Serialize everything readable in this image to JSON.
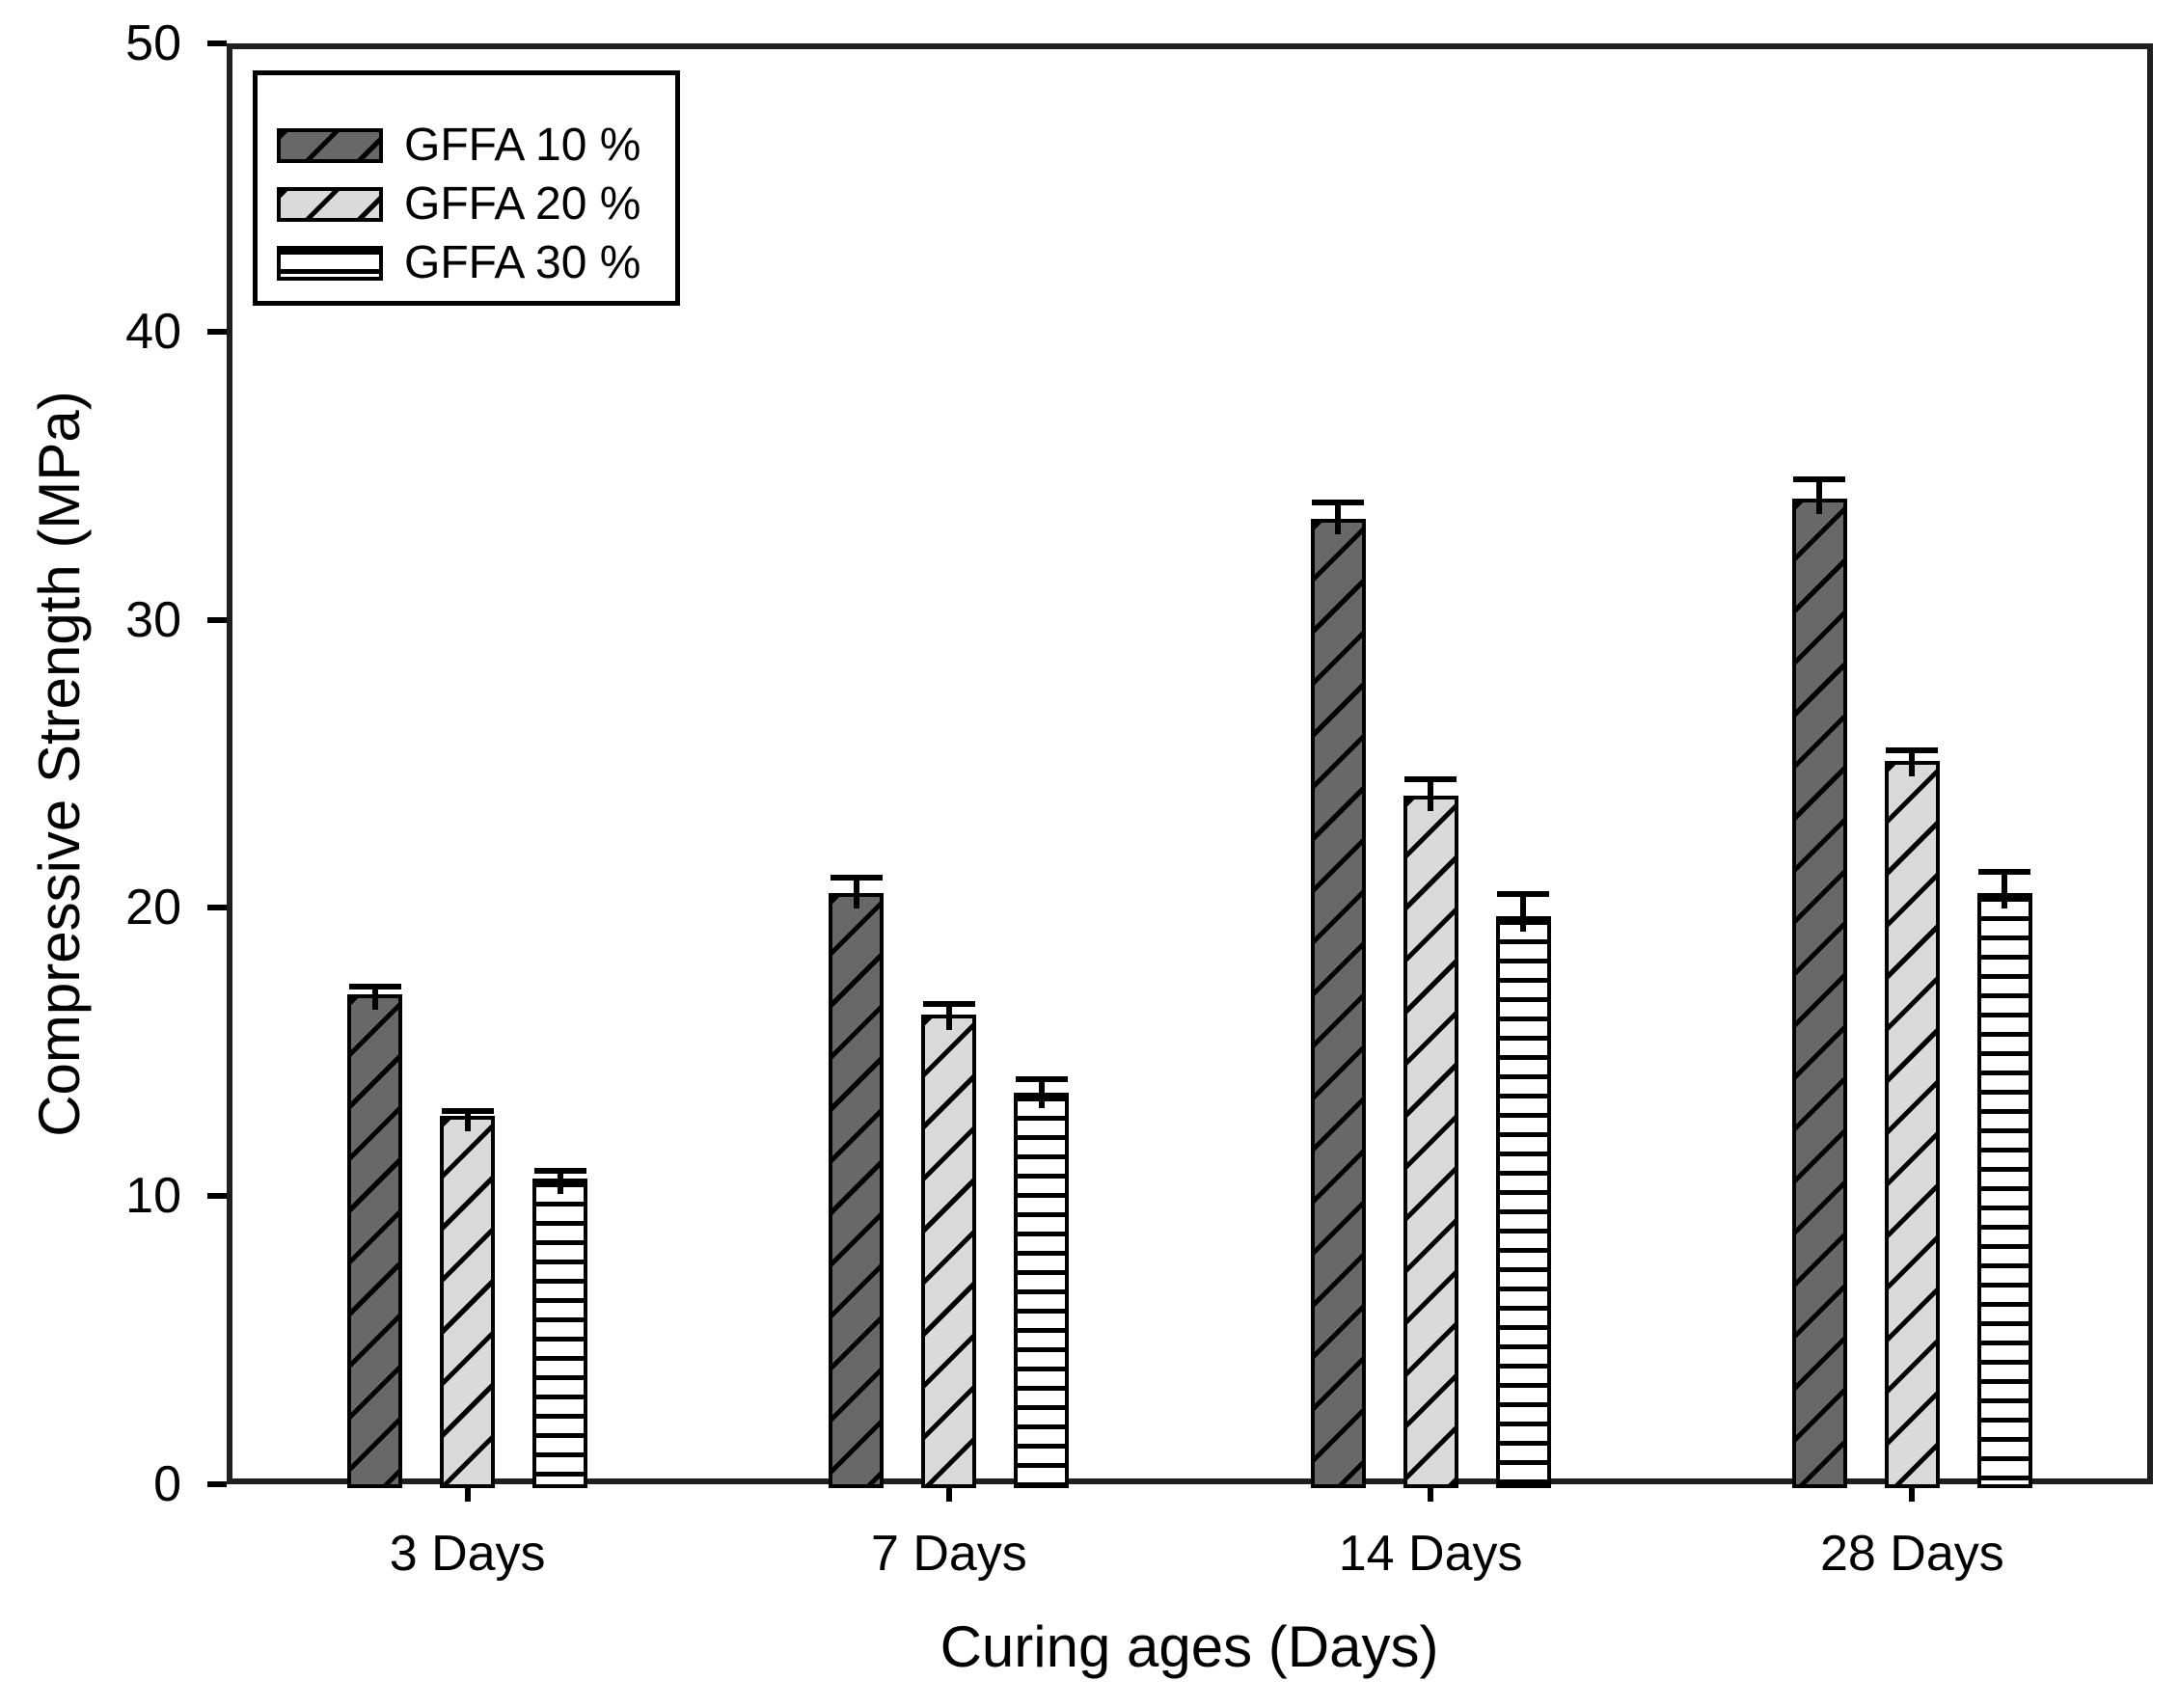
{
  "chart_data": {
    "type": "bar",
    "title": "",
    "xlabel": "Curing ages (Days)",
    "ylabel": "Compressive Strength (MPa)",
    "categories": [
      "3 Days",
      "7 Days",
      "14 Days",
      "28 Days"
    ],
    "series": [
      {
        "name": "GFFA 10 %",
        "values": [
          17.0,
          20.5,
          33.5,
          34.2
        ],
        "errors": [
          0.2,
          0.5,
          0.5,
          0.6
        ],
        "fill": "#686868",
        "pattern": "diagonal"
      },
      {
        "name": "GFFA 20 %",
        "values": [
          12.8,
          16.3,
          23.9,
          25.1
        ],
        "errors": [
          0.1,
          0.3,
          0.5,
          0.3
        ],
        "fill": "#dadada",
        "pattern": "diagonal"
      },
      {
        "name": "GFFA 30 %",
        "values": [
          10.6,
          13.6,
          19.7,
          20.5
        ],
        "errors": [
          0.2,
          0.4,
          0.7,
          0.7
        ],
        "fill": "#ffffff",
        "pattern": "horizontal"
      }
    ],
    "ylim": [
      0,
      50
    ],
    "yticks": [
      0,
      10,
      20,
      30,
      40,
      50
    ],
    "grid": false,
    "legend_position": "top-left",
    "axis_color": "#1f1f1f",
    "bar_border_color": "#000000",
    "error_bar_color": "#000000"
  }
}
